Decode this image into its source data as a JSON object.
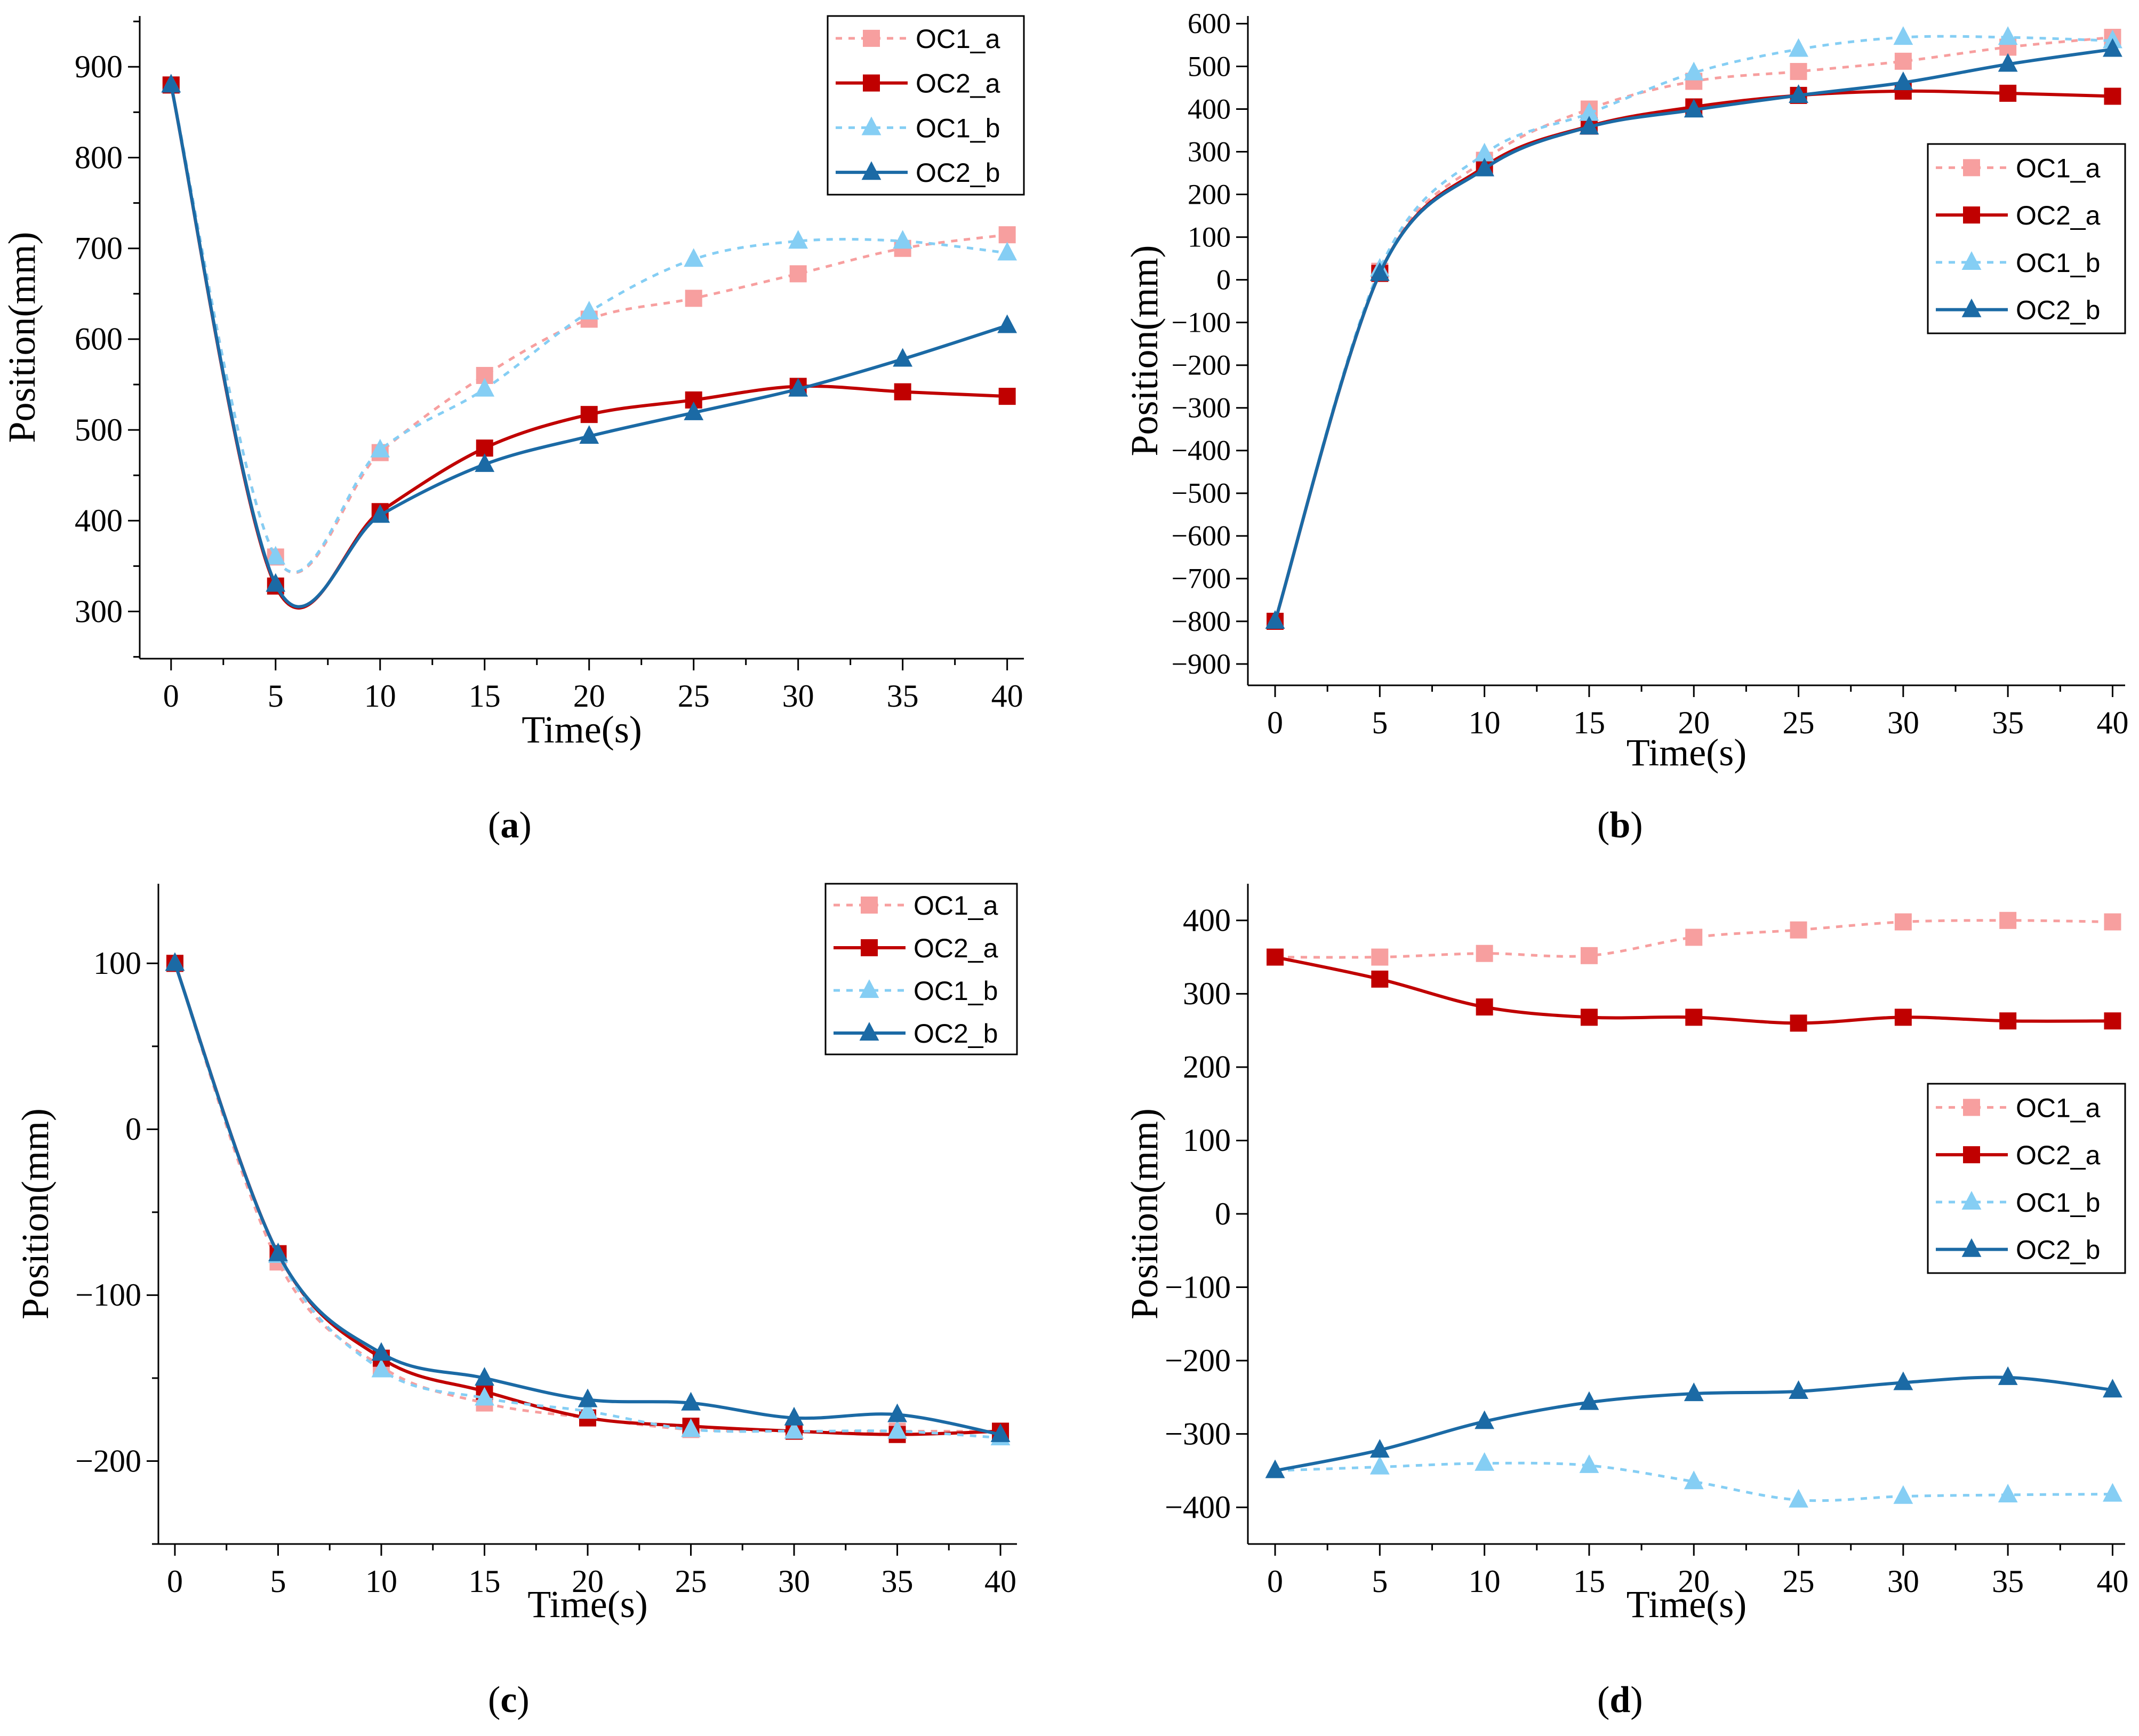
{
  "styles": {
    "OC1_a": {
      "color": "#f79f9f",
      "marker": "square",
      "dashed": true
    },
    "OC2_a": {
      "color": "#c00000",
      "marker": "square",
      "dashed": false
    },
    "OC1_b": {
      "color": "#85cef4",
      "marker": "triangle",
      "dashed": true
    },
    "OC2_b": {
      "color": "#1b6aa5",
      "marker": "triangle",
      "dashed": false
    }
  },
  "chart_data": [
    {
      "id": "a",
      "caption": "a",
      "type": "line",
      "xlabel": "Time(s)",
      "ylabel": "Position(mm)",
      "xlim": [
        -1.5,
        40.8
      ],
      "ylim": [
        248,
        956
      ],
      "xticks": [
        0,
        5,
        10,
        15,
        20,
        25,
        30,
        35,
        40
      ],
      "yticks": [
        300,
        400,
        500,
        600,
        700,
        800,
        900
      ],
      "legend_position": "top-right",
      "x": [
        0,
        5,
        10,
        15,
        20,
        25,
        30,
        35,
        40
      ],
      "series": [
        {
          "name": "OC1_a",
          "values": [
            880,
            360,
            475,
            560,
            622,
            645,
            672,
            700,
            715
          ]
        },
        {
          "name": "OC2_a",
          "values": [
            880,
            328,
            410,
            480,
            517,
            533,
            548,
            542,
            537
          ]
        },
        {
          "name": "OC1_b",
          "values": [
            880,
            360,
            478,
            545,
            630,
            688,
            708,
            708,
            695
          ]
        },
        {
          "name": "OC2_b",
          "values": [
            880,
            330,
            406,
            462,
            493,
            519,
            545,
            578,
            615
          ]
        }
      ]
    },
    {
      "id": "b",
      "caption": "b",
      "type": "line",
      "xlabel": "Time(s)",
      "ylabel": "Position(mm)",
      "xlim": [
        -1.3,
        40.6
      ],
      "ylim": [
        -950,
        618
      ],
      "xticks": [
        0,
        5,
        10,
        15,
        20,
        25,
        30,
        35,
        40
      ],
      "yticks": [
        600,
        500,
        400,
        300,
        200,
        100,
        0,
        -100,
        -200,
        -300,
        -400,
        -500,
        -600,
        -700,
        -800,
        -900
      ],
      "legend_position": "right",
      "x": [
        0,
        5,
        10,
        15,
        20,
        25,
        30,
        35,
        40
      ],
      "series": [
        {
          "name": "OC1_a",
          "values": [
            -800,
            20,
            280,
            400,
            465,
            488,
            512,
            545,
            568
          ]
        },
        {
          "name": "OC2_a",
          "values": [
            -800,
            15,
            265,
            360,
            405,
            432,
            442,
            437,
            430
          ]
        },
        {
          "name": "OC1_b",
          "values": [
            -800,
            25,
            295,
            390,
            485,
            540,
            568,
            568,
            560
          ]
        },
        {
          "name": "OC2_b",
          "values": [
            -800,
            15,
            260,
            358,
            398,
            432,
            462,
            505,
            540
          ]
        }
      ]
    },
    {
      "id": "c",
      "caption": "c",
      "type": "line",
      "xlabel": "Time(s)",
      "ylabel": "Position(mm)",
      "xlim": [
        -0.8,
        40.8
      ],
      "ylim": [
        -250,
        148
      ],
      "xticks": [
        0,
        5,
        10,
        15,
        20,
        25,
        30,
        35,
        40
      ],
      "yticks": [
        100,
        0,
        -100,
        -200
      ],
      "legend_position": "top-right",
      "x": [
        0,
        5,
        10,
        15,
        20,
        25,
        30,
        35,
        40
      ],
      "series": [
        {
          "name": "OC1_a",
          "values": [
            100,
            -80,
            -143,
            -165,
            -174,
            -181,
            -182,
            -182,
            -182
          ]
        },
        {
          "name": "OC2_a",
          "values": [
            100,
            -75,
            -138,
            -158,
            -174,
            -179,
            -182,
            -184,
            -182
          ]
        },
        {
          "name": "OC1_b",
          "values": [
            100,
            -76,
            -145,
            -162,
            -170,
            -181,
            -182,
            -182,
            -186
          ]
        },
        {
          "name": "OC2_b",
          "values": [
            100,
            -75,
            -135,
            -150,
            -163,
            -165,
            -174,
            -172,
            -184
          ]
        }
      ]
    },
    {
      "id": "d",
      "caption": "d",
      "type": "line",
      "xlabel": "Time(s)",
      "ylabel": "Position(mm)",
      "xlim": [
        -1.3,
        40.6
      ],
      "ylim": [
        -450,
        450
      ],
      "xticks": [
        0,
        5,
        10,
        15,
        20,
        25,
        30,
        35,
        40
      ],
      "yticks": [
        400,
        300,
        200,
        100,
        0,
        -100,
        -200,
        -300,
        -400
      ],
      "legend_position": "right",
      "x": [
        0,
        5,
        10,
        15,
        20,
        25,
        30,
        35,
        40
      ],
      "series": [
        {
          "name": "OC1_a",
          "values": [
            350,
            350,
            355,
            352,
            377,
            387,
            398,
            400,
            398
          ]
        },
        {
          "name": "OC2_a",
          "values": [
            350,
            320,
            282,
            268,
            268,
            260,
            268,
            263,
            263
          ]
        },
        {
          "name": "OC1_b",
          "values": [
            -350,
            -345,
            -340,
            -343,
            -365,
            -390,
            -385,
            -383,
            -382
          ]
        },
        {
          "name": "OC2_b",
          "values": [
            -350,
            -322,
            -283,
            -257,
            -245,
            -242,
            -230,
            -223,
            -240
          ]
        }
      ]
    }
  ]
}
